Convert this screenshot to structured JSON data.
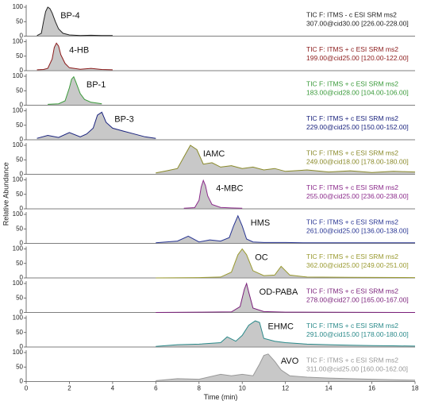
{
  "chart_data": [
    {
      "type": "line",
      "annotation": "BP-4",
      "color": "#222222",
      "scan_filter": [
        "TIC F: ITMS - c ESI SRM ms2",
        "307.00@cid30.00 [226.00-228.00]"
      ],
      "x": [
        0.5,
        0.7,
        0.8,
        0.9,
        1.0,
        1.1,
        1.2,
        1.35,
        1.5,
        1.7,
        2,
        2.5,
        3,
        3.5,
        4
      ],
      "values": [
        2,
        10,
        50,
        85,
        100,
        95,
        80,
        50,
        25,
        10,
        4,
        2,
        3,
        2,
        2
      ],
      "xlim": [
        0,
        18
      ],
      "ylim": [
        0,
        100
      ],
      "yticks": [
        0,
        50,
        100
      ]
    },
    {
      "type": "line",
      "annotation": "4-HB",
      "color": "#8b1a1a",
      "scan_filter": [
        "TIC F: ITMS + c ESI SRM ms2",
        "199.00@cid25.00 [120.00-122.00]"
      ],
      "x": [
        0.5,
        0.8,
        1.0,
        1.2,
        1.3,
        1.4,
        1.5,
        1.6,
        1.8,
        2.0,
        2.5,
        3,
        3.5,
        4
      ],
      "values": [
        3,
        4,
        8,
        40,
        80,
        95,
        85,
        55,
        25,
        10,
        5,
        8,
        4,
        3
      ],
      "xlim": [
        0,
        18
      ],
      "ylim": [
        0,
        100
      ],
      "yticks": [
        0,
        50,
        100
      ]
    },
    {
      "type": "line",
      "annotation": "BP-1",
      "color": "#3a9a3a",
      "scan_filter": [
        "TIC F: ITMS + c ESI SRM ms2",
        "183.00@cid28.00 [104.00-106.00]"
      ],
      "x": [
        1.0,
        1.5,
        1.8,
        2.0,
        2.1,
        2.2,
        2.3,
        2.5,
        2.7,
        3.0,
        3.5
      ],
      "values": [
        3,
        5,
        15,
        60,
        90,
        98,
        80,
        40,
        20,
        10,
        5
      ],
      "xlim": [
        0,
        18
      ],
      "ylim": [
        0,
        100
      ],
      "yticks": [
        0,
        50,
        100
      ]
    },
    {
      "type": "line",
      "annotation": "BP-3",
      "color": "#1a237e",
      "scan_filter": [
        "TIC F: ITMS + c ESI SRM ms2",
        "229.00@cid25.00 [150.00-152.00]"
      ],
      "x": [
        0.5,
        1,
        1.5,
        2,
        2.5,
        2.8,
        3.1,
        3.3,
        3.5,
        3.7,
        4,
        4.5,
        5,
        5.5,
        6
      ],
      "values": [
        5,
        15,
        8,
        25,
        10,
        20,
        40,
        85,
        95,
        60,
        40,
        30,
        20,
        10,
        5
      ],
      "xlim": [
        0,
        18
      ],
      "ylim": [
        0,
        100
      ],
      "yticks": [
        0,
        50,
        100
      ]
    },
    {
      "type": "line",
      "annotation": "IAMC",
      "color": "#8a8a2a",
      "scan_filter": [
        "TIC F: ITMS + c ESI SRM ms2",
        "249.00@cid18.00 [178.00-180.00]"
      ],
      "x": [
        6,
        6.5,
        7,
        7.3,
        7.6,
        7.9,
        8.2,
        8.6,
        9,
        9.5,
        10,
        10.5,
        11,
        11.5,
        12,
        13,
        14,
        15,
        16,
        17,
        18
      ],
      "values": [
        5,
        12,
        20,
        60,
        100,
        85,
        35,
        40,
        25,
        30,
        20,
        25,
        15,
        20,
        10,
        15,
        8,
        12,
        6,
        10,
        8
      ],
      "xlim": [
        0,
        18
      ],
      "ylim": [
        0,
        100
      ],
      "yticks": [
        0,
        50,
        100
      ]
    },
    {
      "type": "line",
      "annotation": "4-MBC",
      "color": "#8b2a8b",
      "scan_filter": [
        "TIC F: ITMS + c ESI SRM ms2",
        "255.00@cid25.00 [236.00-238.00]"
      ],
      "x": [
        7.3,
        7.8,
        8.0,
        8.1,
        8.2,
        8.3,
        8.4,
        8.6,
        9,
        9.5,
        10
      ],
      "values": [
        2,
        4,
        30,
        75,
        98,
        80,
        45,
        15,
        5,
        3,
        2
      ],
      "xlim": [
        0,
        18
      ],
      "ylim": [
        0,
        100
      ],
      "yticks": [
        0,
        50,
        100
      ],
      "ylabel": "Relative Abundance"
    },
    {
      "type": "line",
      "annotation": "HMS",
      "color": "#283593",
      "scan_filter": [
        "TIC F: ITMS + c ESI SRM ms2",
        "261.00@cid25.00 [136.00-138.00]"
      ],
      "x": [
        6,
        7,
        7.5,
        8,
        8.5,
        9,
        9.4,
        9.6,
        9.8,
        10,
        10.2,
        10.5,
        11,
        12,
        13,
        14,
        15,
        16,
        17,
        18
      ],
      "values": [
        2,
        8,
        25,
        5,
        12,
        8,
        20,
        60,
        95,
        60,
        15,
        5,
        3,
        3,
        2,
        2,
        2,
        2,
        2,
        2
      ],
      "xlim": [
        0,
        18
      ],
      "ylim": [
        0,
        100
      ],
      "yticks": [
        0,
        50,
        100
      ]
    },
    {
      "type": "line",
      "annotation": "OC",
      "color": "#9a9a30",
      "scan_filter": [
        "TIC F: ITMS + c ESI SRM ms2",
        "362.00@cid25.00 [249.00-251.00]"
      ],
      "x": [
        6,
        8,
        9,
        9.5,
        9.8,
        10,
        10.2,
        10.5,
        11,
        11.5,
        11.8,
        12.2,
        13,
        15,
        18
      ],
      "values": [
        0,
        1,
        3,
        20,
        80,
        100,
        80,
        25,
        8,
        10,
        40,
        10,
        3,
        2,
        1
      ],
      "xlim": [
        0,
        18
      ],
      "ylim": [
        0,
        100
      ],
      "yticks": [
        0,
        50,
        100
      ]
    },
    {
      "type": "line",
      "annotation": "OD-PABA",
      "color": "#7a1f7a",
      "scan_filter": [
        "TIC F: ITMS + c ESI SRM ms2",
        "278.00@cid27.00 [165.00-167.00]"
      ],
      "x": [
        6,
        8,
        9.5,
        9.9,
        10.1,
        10.2,
        10.3,
        10.5,
        11,
        12,
        18
      ],
      "values": [
        0,
        1,
        2,
        20,
        80,
        100,
        70,
        15,
        3,
        1,
        0
      ],
      "xlim": [
        0,
        18
      ],
      "ylim": [
        0,
        100
      ],
      "yticks": [
        0,
        50,
        100
      ]
    },
    {
      "type": "line",
      "annotation": "EHMC",
      "color": "#2a8a8a",
      "scan_filter": [
        "TIC F: ITMS + c ESI SRM ms2",
        "291.00@cid15.00 [178.00-180.00]"
      ],
      "x": [
        6,
        7,
        8,
        9,
        9.3,
        9.7,
        10,
        10.3,
        10.6,
        10.8,
        11,
        11.5,
        12,
        13,
        14,
        15,
        16,
        17,
        18
      ],
      "values": [
        2,
        8,
        10,
        15,
        35,
        20,
        40,
        75,
        90,
        85,
        30,
        20,
        15,
        10,
        8,
        6,
        5,
        4,
        3
      ],
      "xlim": [
        0,
        18
      ],
      "ylim": [
        0,
        100
      ],
      "yticks": [
        0,
        50,
        100
      ]
    },
    {
      "type": "line",
      "annotation": "AVO",
      "color": "#999999",
      "scan_filter": [
        "TIC F: ITMS + c ESI SRM ms2",
        "311.00@cid25.00 [160.00-162.00]"
      ],
      "x": [
        6,
        7,
        8,
        9,
        9.5,
        10,
        10.5,
        10.8,
        11.0,
        11.2,
        11.5,
        11.8,
        12.2,
        13,
        14,
        15,
        16,
        17,
        18
      ],
      "values": [
        3,
        10,
        8,
        25,
        20,
        25,
        20,
        60,
        90,
        95,
        70,
        40,
        20,
        15,
        12,
        10,
        8,
        6,
        5
      ],
      "xlim": [
        0,
        18
      ],
      "ylim": [
        0,
        100
      ],
      "yticks": [
        0,
        50,
        100
      ],
      "xticks": [
        0,
        2,
        4,
        6,
        8,
        10,
        12,
        14,
        16,
        18
      ],
      "xlabel": "Time (min)"
    }
  ]
}
